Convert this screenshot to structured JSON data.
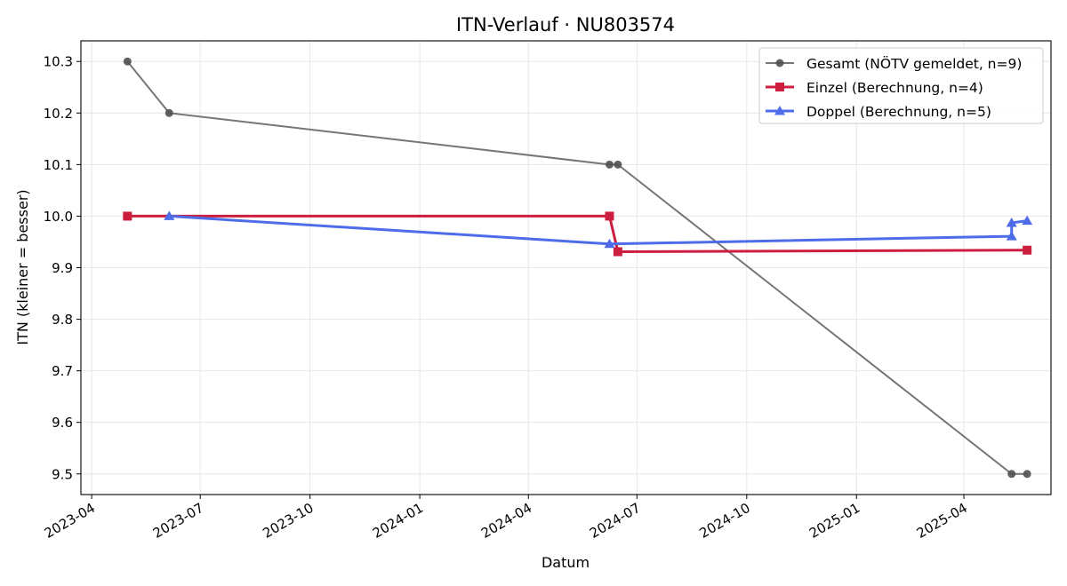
{
  "chart_data": {
    "type": "line",
    "title": "ITN-Verlauf · NU803574",
    "xlabel": "Datum",
    "ylabel": "ITN  (kleiner = besser)",
    "x_ticks": [
      "2023-04",
      "2023-07",
      "2023-10",
      "2024-01",
      "2024-04",
      "2024-07",
      "2024-10",
      "2025-01",
      "2025-04"
    ],
    "y_ticks": [
      "9.5",
      "9.6",
      "9.7",
      "9.8",
      "9.9",
      "10.0",
      "10.1",
      "10.2",
      "10.3"
    ],
    "ylim": [
      9.46,
      10.34
    ],
    "xlim": [
      "2023-03-23",
      "2025-06-13"
    ],
    "grid": true,
    "legend_position": "top-right",
    "series": [
      {
        "name": "Gesamt (NÖTV gemeldet, n=9)",
        "color": "#505050",
        "marker": "circle",
        "points": [
          {
            "x": "2023-05-01",
            "y": 10.3
          },
          {
            "x": "2023-06-05",
            "y": 10.2
          },
          {
            "x": "2024-06-08",
            "y": 10.1
          },
          {
            "x": "2024-06-15",
            "y": 10.1
          },
          {
            "x": "2025-05-11",
            "y": 9.5
          },
          {
            "x": "2025-05-24",
            "y": 9.5
          }
        ]
      },
      {
        "name": "Einzel (Berechnung, n=4)",
        "color": "#cc1f3f",
        "marker": "square",
        "points": [
          {
            "x": "2023-05-01",
            "y": 10.0
          },
          {
            "x": "2024-06-08",
            "y": 10.0
          },
          {
            "x": "2024-06-15",
            "y": 9.931
          },
          {
            "x": "2025-05-24",
            "y": 9.934
          }
        ]
      },
      {
        "name": "Doppel (Berechnung, n=5)",
        "color": "#4e6ce8",
        "marker": "triangle",
        "points": [
          {
            "x": "2023-06-05",
            "y": 10.0
          },
          {
            "x": "2024-06-08",
            "y": 9.946
          },
          {
            "x": "2025-05-11",
            "y": 9.961
          },
          {
            "x": "2025-05-11",
            "y": 9.987
          },
          {
            "x": "2025-05-24",
            "y": 9.991
          }
        ]
      }
    ]
  }
}
